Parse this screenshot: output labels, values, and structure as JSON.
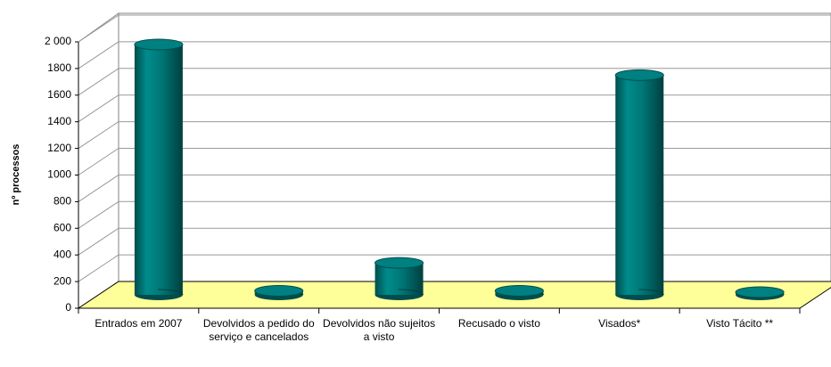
{
  "chart_data": {
    "type": "bar3d",
    "y_label": "nº processos",
    "categories": [
      "Entrados em 2007",
      "Devolvidos a pedido do serviço e cancelados",
      "Devolvidos não sujeitos a visto",
      "Recusado o visto",
      "Visados*",
      "Visto Tácito **"
    ],
    "values": [
      1880,
      30,
      240,
      30,
      1650,
      20
    ],
    "color": "#008080",
    "floor_color": "#ffff99",
    "ylim": [
      0,
      2000
    ],
    "yticks": [
      0,
      200,
      400,
      600,
      800,
      1000,
      1200,
      1400,
      1600,
      1800,
      {
        "value": 2000,
        "label": "2 000"
      }
    ],
    "grid": true
  }
}
